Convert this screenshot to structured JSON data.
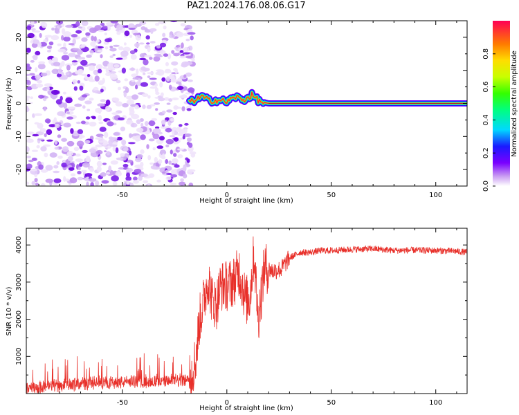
{
  "title": "PAZ1.2024.176.08.06.G17",
  "chart_data": [
    {
      "type": "heatmap",
      "xlabel": "Height of straight line (km)",
      "ylabel": "Frequency (Hz)",
      "xlim": [
        -96,
        115
      ],
      "ylim": [
        -25,
        25
      ],
      "xticks": [
        -50,
        0,
        50,
        100
      ],
      "xtick_labels": [
        "-50",
        "0",
        "50",
        "100"
      ],
      "yticks": [
        -20,
        -10,
        0,
        10,
        20
      ],
      "ytick_labels": [
        "-20",
        "-10",
        "0",
        "10",
        "20"
      ],
      "colorbar": {
        "label": "Normalized spectral amplitude",
        "range": [
          0,
          1
        ],
        "ticks": [
          0.0,
          0.2,
          0.4,
          0.6,
          0.8
        ],
        "tick_labels": [
          "0.0",
          "0.2",
          "0.4",
          "0.6",
          "0.8"
        ]
      },
      "signal_track": {
        "x": [
          -17,
          -12,
          -8,
          -4,
          0,
          4,
          8,
          12,
          16,
          20,
          30,
          40,
          60,
          80,
          100,
          115
        ],
        "freq_hz": [
          0.5,
          2.0,
          0.8,
          1.0,
          0.5,
          2.0,
          1.0,
          2.5,
          0.5,
          0.0,
          0.0,
          0.0,
          0.0,
          0.0,
          0.0,
          0.0
        ]
      },
      "grid": false
    },
    {
      "type": "line",
      "xlabel": "Height of straight line (km)",
      "ylabel": "SNR (10 * v/v)",
      "xlim": [
        -96,
        115
      ],
      "ylim": [
        0,
        4450
      ],
      "xticks": [
        -50,
        0,
        50,
        100
      ],
      "xtick_labels": [
        "-50",
        "0",
        "50",
        "100"
      ],
      "yticks": [
        1000,
        2000,
        3000,
        4000
      ],
      "ytick_labels": [
        "1000",
        "2000",
        "3000",
        "4000"
      ],
      "series": [
        {
          "color": "#e8302a",
          "x": [
            -96,
            -80,
            -60,
            -40,
            -25,
            -18,
            -15,
            -13,
            -11,
            -9,
            -7,
            -5,
            -3,
            0,
            3,
            6,
            9,
            11,
            13,
            15,
            18,
            22,
            26,
            30,
            35,
            40,
            45,
            50,
            60,
            70,
            80,
            90,
            100,
            110,
            115
          ],
          "y": [
            150,
            230,
            300,
            330,
            340,
            380,
            900,
            2000,
            2500,
            3100,
            2500,
            2400,
            2900,
            2900,
            3000,
            3300,
            2500,
            2600,
            3800,
            2000,
            3400,
            3300,
            3350,
            3650,
            3800,
            3800,
            3850,
            3850,
            3880,
            3900,
            3850,
            3860,
            3850,
            3830,
            3800
          ]
        }
      ],
      "grid": false
    }
  ],
  "colors": {
    "line": "#e8302a",
    "purple_noise": "#7a1ee8"
  }
}
